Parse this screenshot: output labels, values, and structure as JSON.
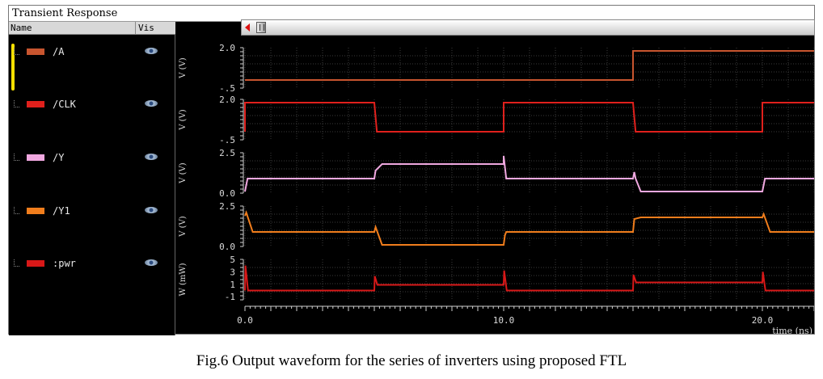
{
  "window": {
    "title": "Transient Response"
  },
  "columns": {
    "name": "Name",
    "vis": "Vis"
  },
  "signals": [
    {
      "label": "/A",
      "color": "#c8552f"
    },
    {
      "label": "/CLK",
      "color": "#e0201c"
    },
    {
      "label": "/Y",
      "color": "#f0a8e0"
    },
    {
      "label": "/Y1",
      "color": "#f07d1c"
    },
    {
      "label": ":pwr",
      "color": "#d81818"
    }
  ],
  "colors": {
    "background": "#000000",
    "grid": "#3a3a3a",
    "axis_text": "#dcdcdc",
    "selection": "#f5e000"
  },
  "caption": "Fig.6 Output waveform for the series of inverters using proposed FTL",
  "chart_data": {
    "type": "line",
    "x_unit_label": "time (ns)",
    "xlim": [
      0,
      22
    ],
    "x_ticks": [
      {
        "value": 0,
        "label": "0.0"
      },
      {
        "value": 10,
        "label": "10.0"
      },
      {
        "value": 20,
        "label": "20.0"
      }
    ],
    "panels": [
      {
        "name": "/A",
        "color": "#c8552f",
        "ylabel": "V (V)",
        "ylim": [
          -0.5,
          2.0
        ],
        "y_ticks": [
          {
            "value": 2.0,
            "label": "2.0"
          },
          {
            "value": -0.5,
            "label": "-.5"
          }
        ],
        "x": [
          0,
          15,
          15,
          22
        ],
        "y": [
          0,
          0,
          1.8,
          1.8
        ]
      },
      {
        "name": "/CLK",
        "color": "#e0201c",
        "ylabel": "V (V)",
        "ylim": [
          -0.5,
          2.0
        ],
        "y_ticks": [
          {
            "value": 2.0,
            "label": "2.0"
          },
          {
            "value": -0.5,
            "label": "-.5"
          }
        ],
        "x": [
          0,
          0,
          5,
          5.1,
          10,
          10,
          15,
          15.1,
          20,
          20,
          22
        ],
        "y": [
          0,
          1.8,
          1.8,
          0,
          0,
          1.8,
          1.8,
          0,
          0,
          1.8,
          1.8
        ]
      },
      {
        "name": "/Y",
        "color": "#f0a8e0",
        "ylabel": "V (V)",
        "ylim": [
          0.0,
          2.5
        ],
        "y_ticks": [
          {
            "value": 2.5,
            "label": "2.5"
          },
          {
            "value": 0.0,
            "label": "0.0"
          }
        ],
        "x": [
          0,
          0.1,
          0.2,
          5,
          5.05,
          5.3,
          10,
          10,
          10.1,
          15,
          15.05,
          15.1,
          15.3,
          20,
          20.1,
          20.3,
          22
        ],
        "y": [
          0.1,
          0.9,
          0.9,
          0.9,
          1.4,
          1.8,
          1.8,
          2.3,
          0.9,
          0.9,
          1.3,
          0.9,
          0.1,
          0.1,
          0.9,
          0.9,
          0.9
        ]
      },
      {
        "name": "/Y1",
        "color": "#f07d1c",
        "ylabel": "V (V)",
        "ylim": [
          0.0,
          2.5
        ],
        "y_ticks": [
          {
            "value": 2.5,
            "label": "2.5"
          },
          {
            "value": 0.0,
            "label": "0.0"
          }
        ],
        "x": [
          0,
          0.05,
          0.3,
          5,
          5.05,
          5.3,
          10,
          10.05,
          10.1,
          15,
          15.05,
          15.3,
          20,
          20.05,
          20.3,
          22
        ],
        "y": [
          1.9,
          2.1,
          0.9,
          0.9,
          1.2,
          0.1,
          0.1,
          0.7,
          0.9,
          0.9,
          1.7,
          1.8,
          1.8,
          2.0,
          0.9,
          0.9
        ]
      },
      {
        "name": ":pwr",
        "color": "#d81818",
        "ylabel": "W (mW)",
        "ylim": [
          -1.5,
          5
        ],
        "y_ticks": [
          {
            "value": 5,
            "label": "5"
          },
          {
            "value": 3,
            "label": "3"
          },
          {
            "value": 1,
            "label": "1"
          },
          {
            "value": -1,
            "label": "-1"
          }
        ],
        "x": [
          0,
          0.02,
          0.12,
          5,
          5.02,
          5.12,
          10,
          10.02,
          10.12,
          15,
          15.02,
          15.12,
          20,
          20.02,
          20.12,
          22
        ],
        "y": [
          0,
          4.0,
          0,
          0,
          2.3,
          0.9,
          0.9,
          3.2,
          0,
          0,
          2.5,
          1.3,
          1.3,
          3.0,
          0,
          0
        ]
      }
    ]
  }
}
